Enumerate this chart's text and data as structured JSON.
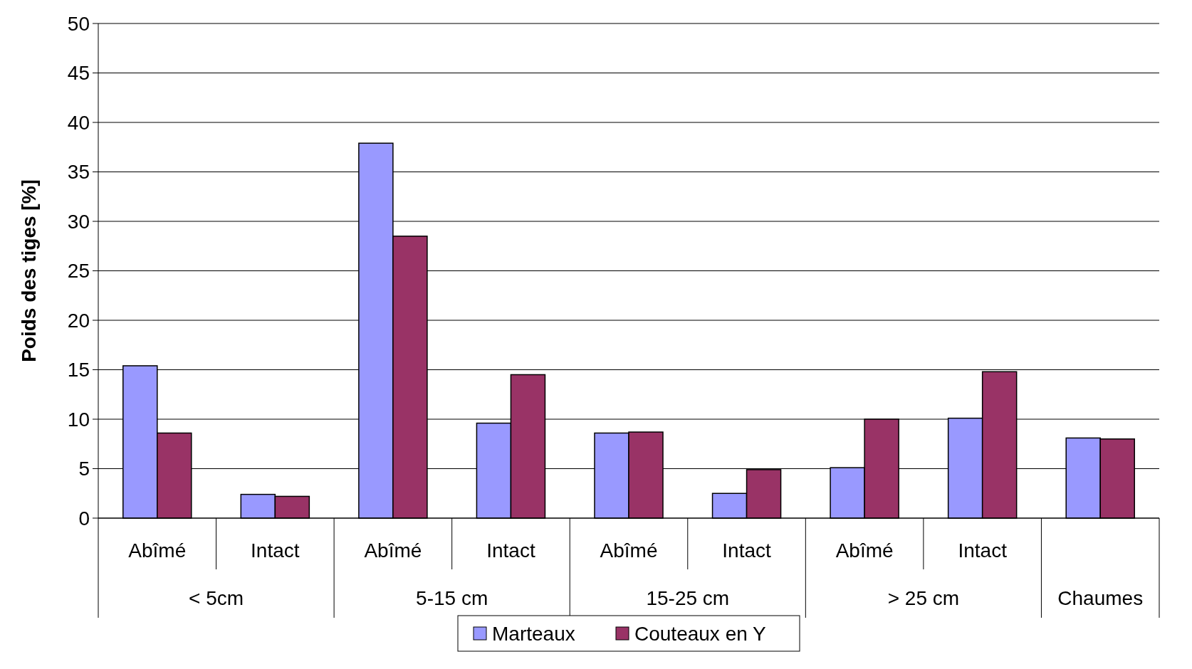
{
  "chart_data": {
    "type": "bar",
    "ylabel": "Poids des tiges [%]",
    "categories": [
      "Abîmé",
      "Intact",
      "Abîmé",
      "Intact",
      "Abîmé",
      "Intact",
      "Abîmé",
      "Intact",
      null
    ],
    "annotations": [
      "< 5cm",
      "5-15 cm",
      "15-25 cm",
      "> 25 cm",
      "Chaumes"
    ],
    "series": [
      {
        "name": "Marteaux",
        "color": "#9999ff",
        "values": [
          15.4,
          2.4,
          37.9,
          9.6,
          8.6,
          2.5,
          5.1,
          10.1,
          8.1
        ]
      },
      {
        "name": "Couteaux en Y",
        "color": "#993366",
        "values": [
          8.6,
          2.2,
          28.5,
          14.5,
          8.7,
          4.9,
          10,
          14.8,
          8
        ]
      }
    ],
    "ylim": [
      0,
      50
    ],
    "yticks": [
      0,
      5,
      10,
      15,
      20,
      25,
      30,
      35,
      40,
      45,
      50
    ],
    "grid": "y",
    "legend": "bottom"
  }
}
